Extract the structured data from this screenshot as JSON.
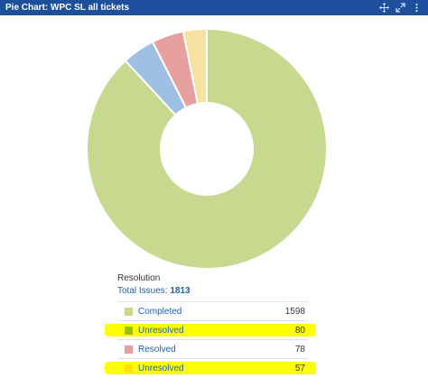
{
  "header": {
    "title": "Pie Chart: WPC SL all tickets",
    "controls": [
      "move-icon",
      "expand-icon",
      "menu-icon"
    ]
  },
  "legend": {
    "title": "Resolution",
    "total_label": "Total Issues:",
    "total_value": "1813"
  },
  "rows": [
    {
      "label": "Completed",
      "value": "1598",
      "highlight": false
    },
    {
      "label": "Unresolved",
      "value": "80",
      "highlight": true
    },
    {
      "label": "Resolved",
      "value": "78",
      "highlight": false
    },
    {
      "label": "Unresolved",
      "value": "57",
      "highlight": true
    }
  ],
  "chart_data": {
    "type": "pie",
    "donut": true,
    "categories": [
      "Completed",
      "Unresolved",
      "Resolved",
      "Unresolved"
    ],
    "values": [
      1598,
      80,
      78,
      57
    ],
    "colors": [
      "#c7d98f",
      "#9fbfe3",
      "#e6a09e",
      "#f7e1a0"
    ],
    "legend_swatch_colors": [
      "#c7d98f",
      "#9fbf00",
      "#e6a09e",
      "#ffe100"
    ]
  }
}
